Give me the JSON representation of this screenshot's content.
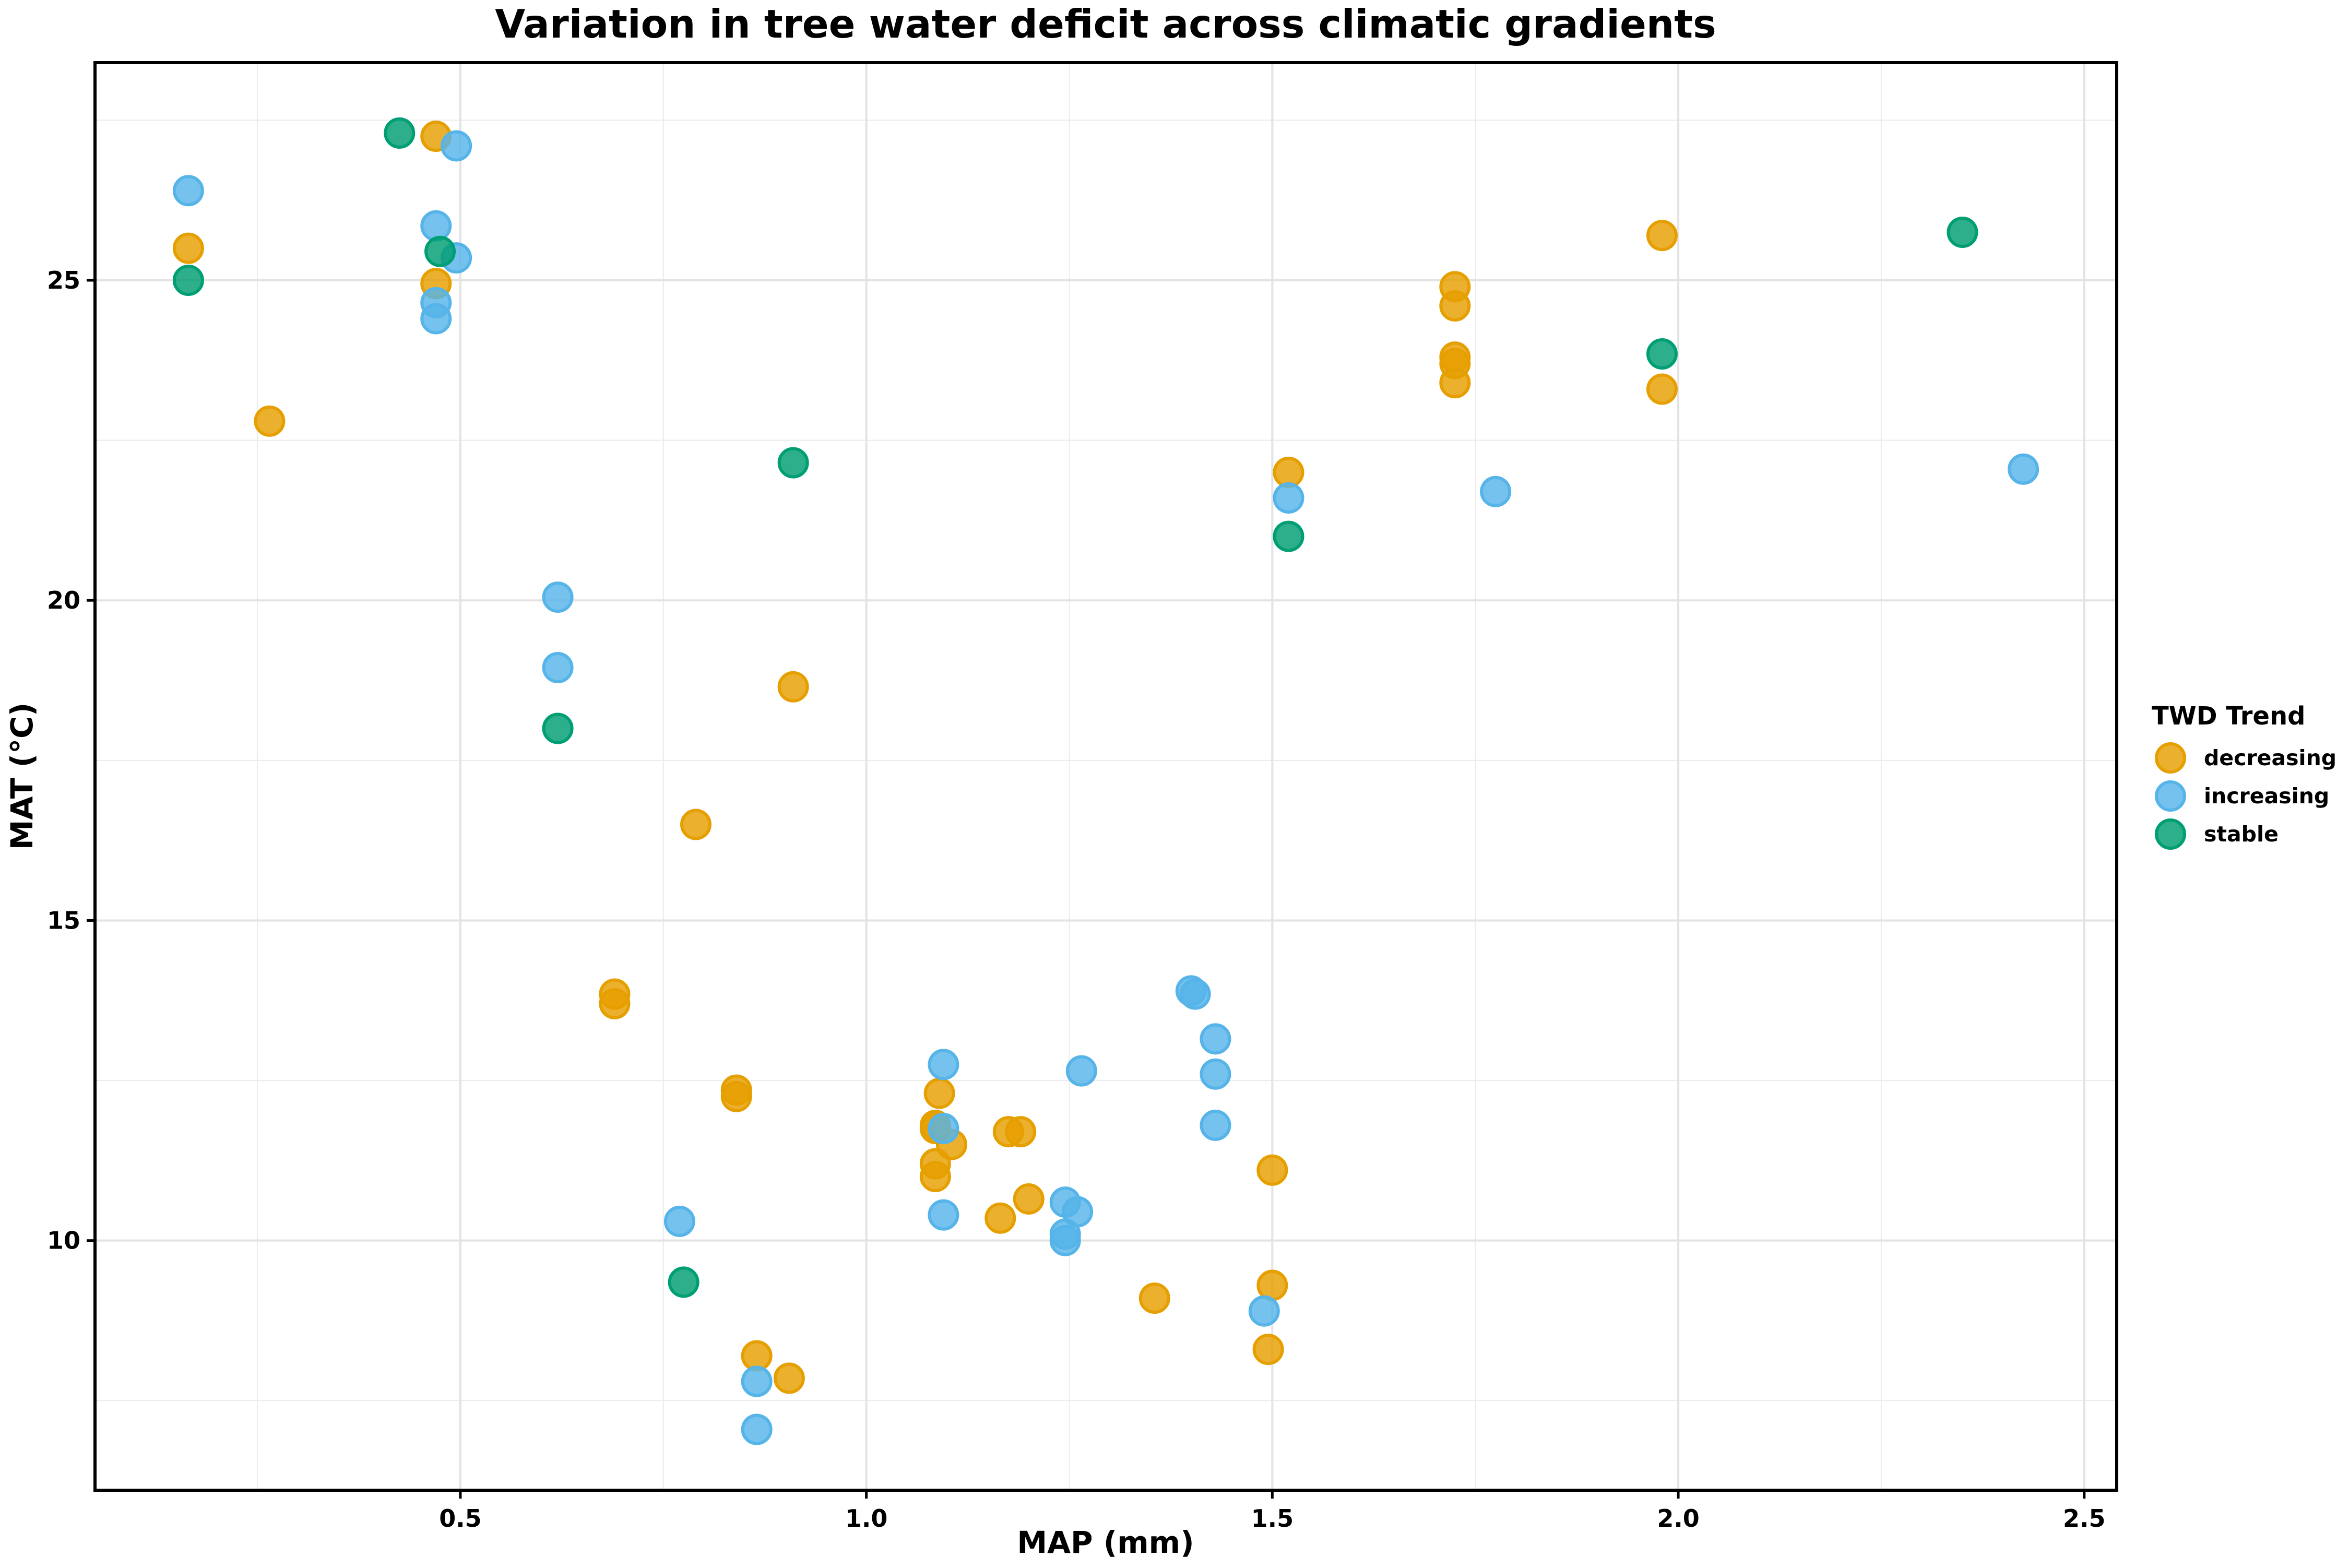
{
  "chart_data": {
    "type": "scatter",
    "title": "Variation in tree water deficit across climatic gradients",
    "xlabel": "MAP (mm)",
    "ylabel": "MAT (°C)",
    "xlim": [
      0.05,
      2.54
    ],
    "ylim": [
      6.1,
      28.4
    ],
    "xticks": [
      0.5,
      1.0,
      1.5,
      2.0,
      2.5
    ],
    "xtick_labels": [
      "0.5",
      "1.0",
      "1.5",
      "2.0",
      "2.5"
    ],
    "yticks": [
      10,
      15,
      20,
      25
    ],
    "ytick_labels": [
      "10",
      "15",
      "20",
      "25"
    ],
    "grid": true,
    "legend": {
      "title": "TWD Trend",
      "position": "right"
    },
    "series": [
      {
        "name": "decreasing",
        "color": "#E69F00",
        "points": [
          [
            0.165,
            25.5
          ],
          [
            0.265,
            22.8
          ],
          [
            0.47,
            27.25
          ],
          [
            0.47,
            24.95
          ],
          [
            0.69,
            13.85
          ],
          [
            0.69,
            13.7
          ],
          [
            0.79,
            16.5
          ],
          [
            0.84,
            12.35
          ],
          [
            0.84,
            12.25
          ],
          [
            0.865,
            8.2
          ],
          [
            0.905,
            7.85
          ],
          [
            0.91,
            18.65
          ],
          [
            1.085,
            11.8
          ],
          [
            1.085,
            11.75
          ],
          [
            1.085,
            11.2
          ],
          [
            1.085,
            11.0
          ],
          [
            1.09,
            12.3
          ],
          [
            1.105,
            11.5
          ],
          [
            1.165,
            10.35
          ],
          [
            1.175,
            11.7
          ],
          [
            1.19,
            11.7
          ],
          [
            1.2,
            10.65
          ],
          [
            1.355,
            9.1
          ],
          [
            1.495,
            8.3
          ],
          [
            1.5,
            9.3
          ],
          [
            1.5,
            11.1
          ],
          [
            1.52,
            22.0
          ],
          [
            1.725,
            24.9
          ],
          [
            1.725,
            24.6
          ],
          [
            1.725,
            23.8
          ],
          [
            1.725,
            23.7
          ],
          [
            1.725,
            23.4
          ],
          [
            1.98,
            25.7
          ],
          [
            1.98,
            23.3
          ]
        ]
      },
      {
        "name": "increasing",
        "color": "#56B4E9",
        "points": [
          [
            0.165,
            26.4
          ],
          [
            0.47,
            25.85
          ],
          [
            0.47,
            24.65
          ],
          [
            0.47,
            24.4
          ],
          [
            0.495,
            27.1
          ],
          [
            0.495,
            25.35
          ],
          [
            0.62,
            20.05
          ],
          [
            0.62,
            18.95
          ],
          [
            0.77,
            10.3
          ],
          [
            0.865,
            7.8
          ],
          [
            0.865,
            7.05
          ],
          [
            1.095,
            12.75
          ],
          [
            1.095,
            11.75
          ],
          [
            1.095,
            10.4
          ],
          [
            1.245,
            10.6
          ],
          [
            1.245,
            10.1
          ],
          [
            1.245,
            10.0
          ],
          [
            1.265,
            12.65
          ],
          [
            1.26,
            10.45
          ],
          [
            1.4,
            13.9
          ],
          [
            1.405,
            13.85
          ],
          [
            1.43,
            13.15
          ],
          [
            1.43,
            12.6
          ],
          [
            1.43,
            11.8
          ],
          [
            1.49,
            8.9
          ],
          [
            1.52,
            21.6
          ],
          [
            1.775,
            21.7
          ],
          [
            2.425,
            22.05
          ]
        ]
      },
      {
        "name": "stable",
        "color": "#009E73",
        "points": [
          [
            0.165,
            25.0
          ],
          [
            0.425,
            27.3
          ],
          [
            0.475,
            25.45
          ],
          [
            0.62,
            18.0
          ],
          [
            0.775,
            9.35
          ],
          [
            0.91,
            22.15
          ],
          [
            1.52,
            21.0
          ],
          [
            1.98,
            23.85
          ],
          [
            2.35,
            25.75
          ]
        ]
      }
    ]
  }
}
